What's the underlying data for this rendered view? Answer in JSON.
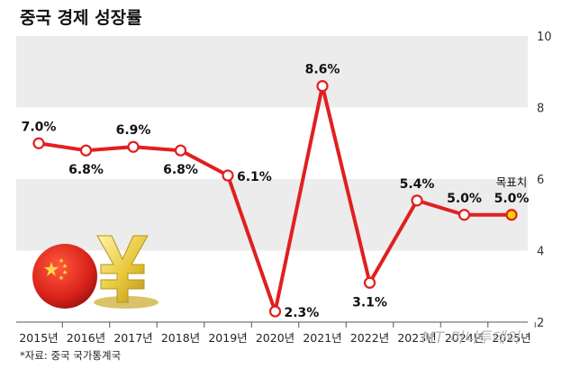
{
  "title": "중국 경제 성장률",
  "source": "*자료: 중국 국가통계국",
  "watermark": "MT 머니투데이",
  "chart_data": {
    "type": "line",
    "title": "중국 경제 성장률",
    "categories": [
      "2015년",
      "2016년",
      "2017년",
      "2018년",
      "2019년",
      "2020년",
      "2021년",
      "2022년",
      "2023년",
      "2024년",
      "2025년"
    ],
    "values": [
      7.0,
      6.8,
      6.9,
      6.8,
      6.1,
      2.3,
      8.6,
      3.1,
      5.4,
      5.0,
      5.0
    ],
    "value_labels": [
      "7.0%",
      "6.8%",
      "6.9%",
      "6.8%",
      "6.1%",
      "2.3%",
      "8.6%",
      "3.1%",
      "5.4%",
      "5.0%",
      "5.0%"
    ],
    "annotation": "목표치",
    "ylim": [
      2,
      10
    ],
    "yticks": [
      2,
      4,
      6,
      8,
      10
    ],
    "y_axis_side": "right",
    "grid": "alternating horizontal bands",
    "colors": {
      "line": "#e0201e",
      "band": "#ececec",
      "highlight": "#f7d300"
    }
  }
}
